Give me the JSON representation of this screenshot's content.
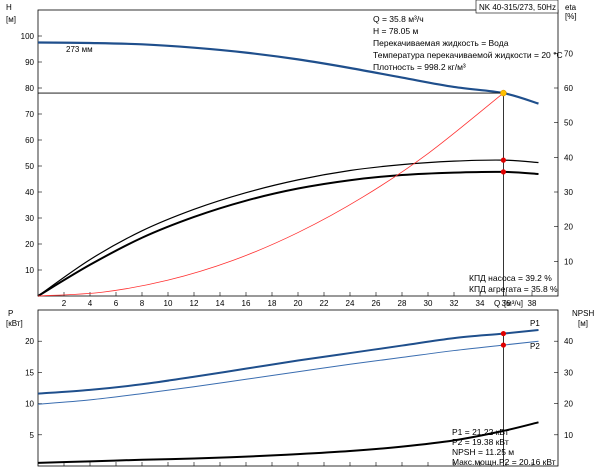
{
  "chart_data": [
    {
      "type": "line",
      "panel": "head-efficiency",
      "model": "NK 40-315/273, 50Hz",
      "ylabel_left": "H",
      "ylabel_left_unit": "[м]",
      "ylabel_right": "eta",
      "ylabel_right_unit": "[%]",
      "xlabel": "Q",
      "xlabel_unit": "[м³/ч]",
      "xlim": [
        0,
        40
      ],
      "ylim_left": [
        0,
        110
      ],
      "ylim_right": [
        0,
        82.5
      ],
      "x_ticks": [
        "2",
        "4",
        "6",
        "8",
        "10",
        "12",
        "14",
        "16",
        "18",
        "20",
        "22",
        "24",
        "26",
        "28",
        "30",
        "32",
        "34",
        "36",
        "38"
      ],
      "y_ticks_left": [
        "10",
        "20",
        "30",
        "40",
        "50",
        "60",
        "70",
        "80",
        "90",
        "100"
      ],
      "y_ticks_right": [
        "10",
        "20",
        "30",
        "40",
        "50",
        "60",
        "70"
      ],
      "impeller_label": "273 мм",
      "series": [
        {
          "role": "head",
          "axis": "left",
          "color": "#1f4f8c",
          "x": [
            0,
            4,
            8,
            12,
            16,
            20,
            24,
            28,
            32,
            35.8,
            38.5
          ],
          "y": [
            97.5,
            97.3,
            96.8,
            95.5,
            93.6,
            91.0,
            87.7,
            84.0,
            80.4,
            78.05,
            74.0
          ]
        },
        {
          "role": "eta-pump",
          "axis": "right",
          "color": "#000000",
          "x": [
            0,
            4,
            8,
            12,
            16,
            20,
            24,
            28,
            32,
            35.8,
            38.5
          ],
          "y": [
            0,
            10.5,
            18.8,
            25.0,
            29.8,
            33.5,
            36.2,
            37.9,
            38.9,
            39.2,
            38.5
          ]
        },
        {
          "role": "eta-unit",
          "axis": "right",
          "color": "#000000",
          "x": [
            0,
            4,
            8,
            12,
            16,
            20,
            24,
            28,
            32,
            35.8,
            38.5
          ],
          "y": [
            0,
            9.0,
            16.8,
            22.8,
            27.5,
            31.0,
            33.4,
            34.9,
            35.6,
            35.8,
            35.2
          ]
        },
        {
          "role": "system-curve",
          "axis": "left",
          "color": "#ff3030",
          "x": [
            0,
            5,
            10,
            15,
            20,
            25,
            30,
            35.8
          ],
          "y": [
            0,
            1.5,
            6.1,
            13.7,
            24.4,
            38.1,
            54.8,
            78.05
          ]
        }
      ],
      "duty_point": {
        "q": 35.8,
        "h": 78.05,
        "eta_pump": 39.2,
        "eta_unit": 35.8
      },
      "info_lines": [
        "Q = 35.8 м³/ч",
        "H = 78.05 м",
        "Перекачиваемая жидкость = Вода",
        "Температура перекачиваемой жидкости = 20 °C",
        "Плотность = 998.2 кг/м³"
      ],
      "eta_lines": [
        "КПД насоса = 39.2 %",
        "КПД агрегата = 35.8 %"
      ]
    },
    {
      "type": "line",
      "panel": "power-npsh",
      "ylabel_left": "P",
      "ylabel_left_unit": "[кВт]",
      "ylabel_right": "NPSH",
      "ylabel_right_unit": "[м]",
      "xlim": [
        0,
        40
      ],
      "ylim_left": [
        0,
        25
      ],
      "ylim_right": [
        0,
        50
      ],
      "y_ticks_left": [
        "5",
        "10",
        "15",
        "20"
      ],
      "y_ticks_right": [
        "10",
        "20",
        "30",
        "40"
      ],
      "series": [
        {
          "name": "P1",
          "axis": "left",
          "color": "#1f4f8c",
          "x": [
            0,
            4,
            8,
            12,
            16,
            20,
            24,
            28,
            32,
            35.8,
            38.5
          ],
          "y": [
            11.6,
            12.2,
            13.1,
            14.3,
            15.6,
            16.9,
            18.1,
            19.3,
            20.5,
            21.22,
            21.8
          ]
        },
        {
          "name": "P2",
          "axis": "left",
          "color": "#3a6db0",
          "x": [
            0,
            4,
            8,
            12,
            16,
            20,
            24,
            28,
            32,
            35.8,
            38.5
          ],
          "y": [
            9.9,
            10.6,
            11.6,
            12.7,
            13.9,
            15.1,
            16.3,
            17.4,
            18.5,
            19.38,
            20.0
          ]
        },
        {
          "name": "NPSH",
          "axis": "right",
          "color": "#000000",
          "x": [
            0,
            4,
            8,
            12,
            16,
            20,
            24,
            28,
            32,
            35.8,
            38.5
          ],
          "y": [
            1.0,
            1.5,
            2.0,
            2.4,
            3.0,
            3.8,
            4.8,
            6.2,
            8.2,
            11.25,
            14.0
          ]
        }
      ],
      "duty_point": {
        "q": 35.8,
        "p1": 21.22,
        "p2": 19.38,
        "npsh": 11.25
      },
      "info_lines": [
        "P1 = 21.22 кВт",
        "P2 = 19.38 кВт",
        "NPSH = 11.25 м",
        "Макс.мощн.P2 = 20.16 кВт"
      ]
    }
  ]
}
